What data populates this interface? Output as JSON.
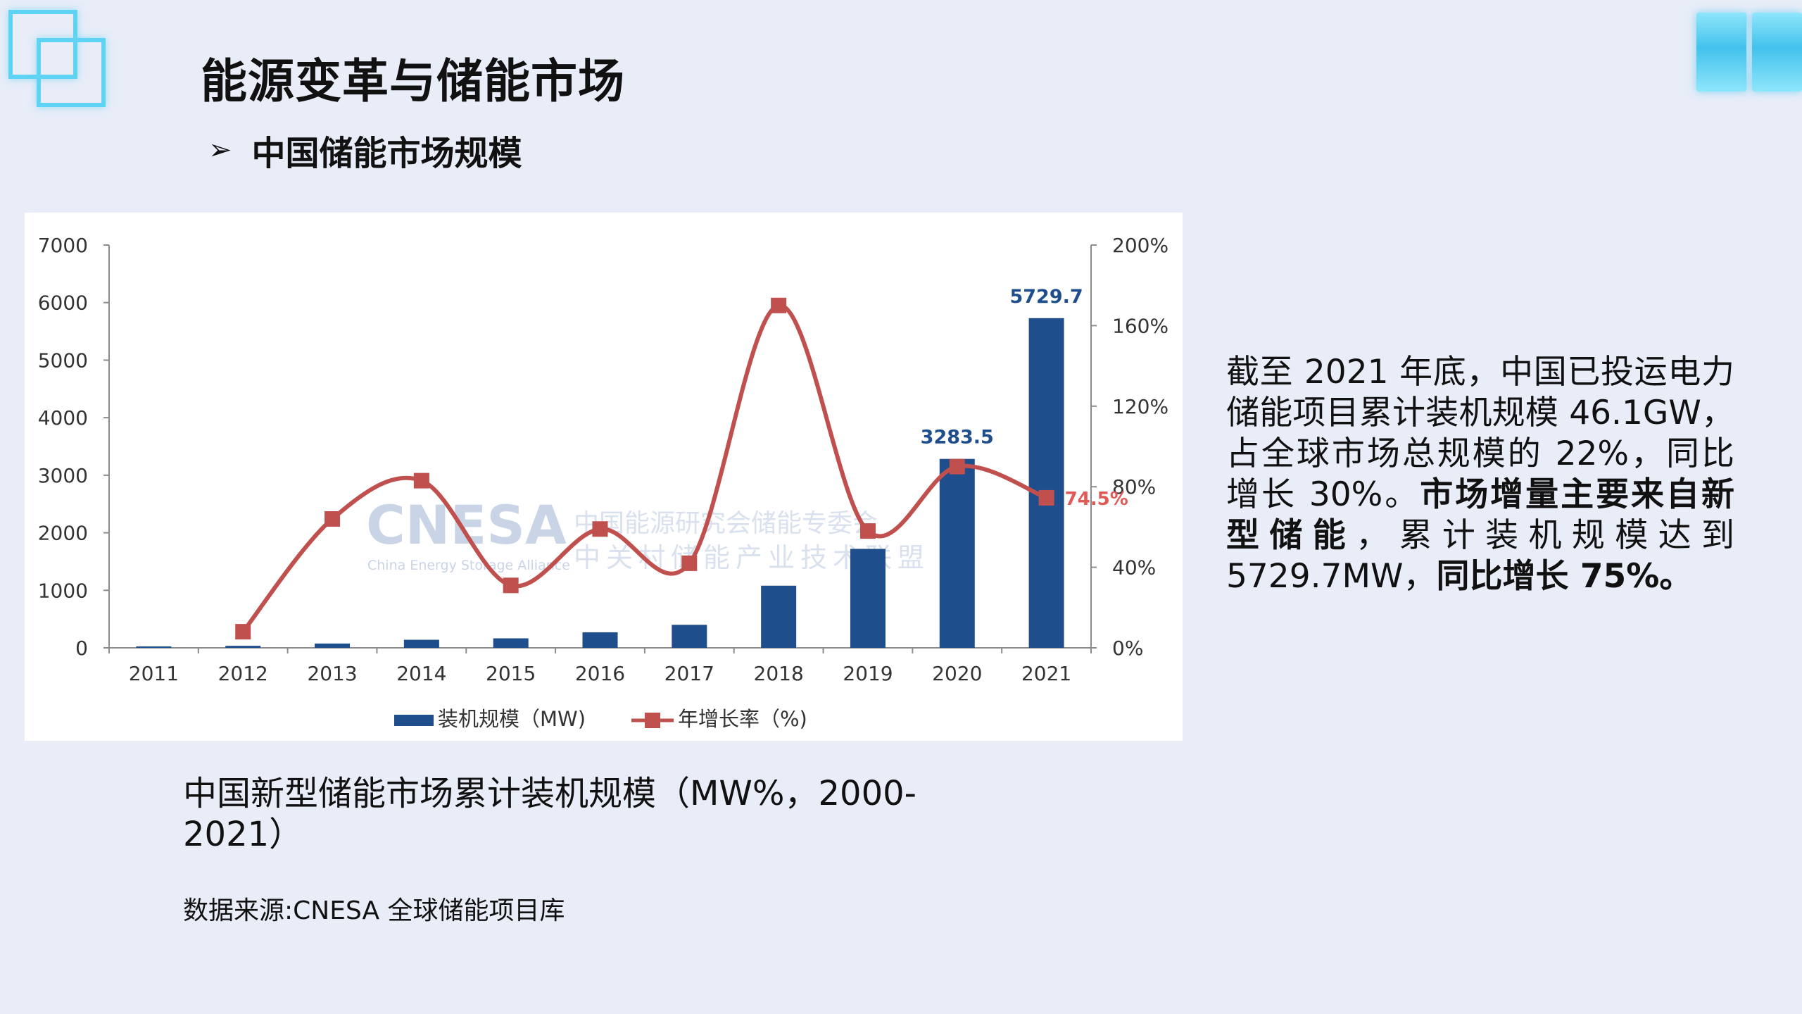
{
  "colors": {
    "background": "#e8edf8",
    "bar": "#1f4e8c",
    "line": "#c0504d",
    "growth_label": "#e05a57",
    "value_label": "#1f4e8c",
    "accent": "#5fd3f3"
  },
  "header": {
    "title": "能源变革与储能市场",
    "subtitle_icon": "arrow-bullet-icon",
    "subtitle": "中国储能市场规模"
  },
  "chart_data": {
    "type": "bar",
    "categories": [
      "2011",
      "2012",
      "2013",
      "2014",
      "2015",
      "2016",
      "2017",
      "2018",
      "2019",
      "2020",
      "2021"
    ],
    "series": [
      {
        "name": "装机规模（MW)",
        "type": "bar",
        "axis": "left",
        "values": [
          25,
          35,
          75,
          140,
          165,
          270,
          400,
          1080,
          1720,
          3283.5,
          5729.7
        ]
      },
      {
        "name": "年增长率（%)",
        "type": "line",
        "axis": "right",
        "values": [
          null,
          8,
          64,
          83,
          31,
          59,
          42,
          170,
          58,
          90,
          74.5
        ]
      }
    ],
    "data_labels": {
      "2020": "3283.5",
      "2021": "5729.7",
      "growth_2021": "74.5%"
    },
    "y_left": {
      "range": [
        0,
        7000
      ],
      "ticks": [
        "0",
        "1000",
        "2000",
        "3000",
        "4000",
        "5000",
        "6000",
        "7000"
      ]
    },
    "y_right": {
      "range": [
        0,
        200
      ],
      "ticks": [
        "0%",
        "40%",
        "80%",
        "120%",
        "160%",
        "200%"
      ]
    },
    "legend_position": "bottom-center",
    "grid": false,
    "watermark": {
      "logo": "CNESA",
      "tagline": "China Energy Storage Alliance",
      "cn_line1": "中国能源研究会储能专委会",
      "cn_line2": "中关村储能产业技术联盟"
    }
  },
  "caption": "中国新型储能市场累计装机规模（MW%，2000-2021）",
  "source": "数据来源:CNESA 全球储能项目库",
  "description": [
    {
      "text": "截至 2021 年底，中国已投运电力储能项目累计装机规模 46.1GW，占全球市场总规模的 22%，同比增长 30%。",
      "bold": false
    },
    {
      "text": "市场增量主要来自新型储能",
      "bold": true
    },
    {
      "text": "，累计装机规模达到 5729.7MW，",
      "bold": false
    },
    {
      "text": "同比增长 75%。",
      "bold": true
    }
  ]
}
